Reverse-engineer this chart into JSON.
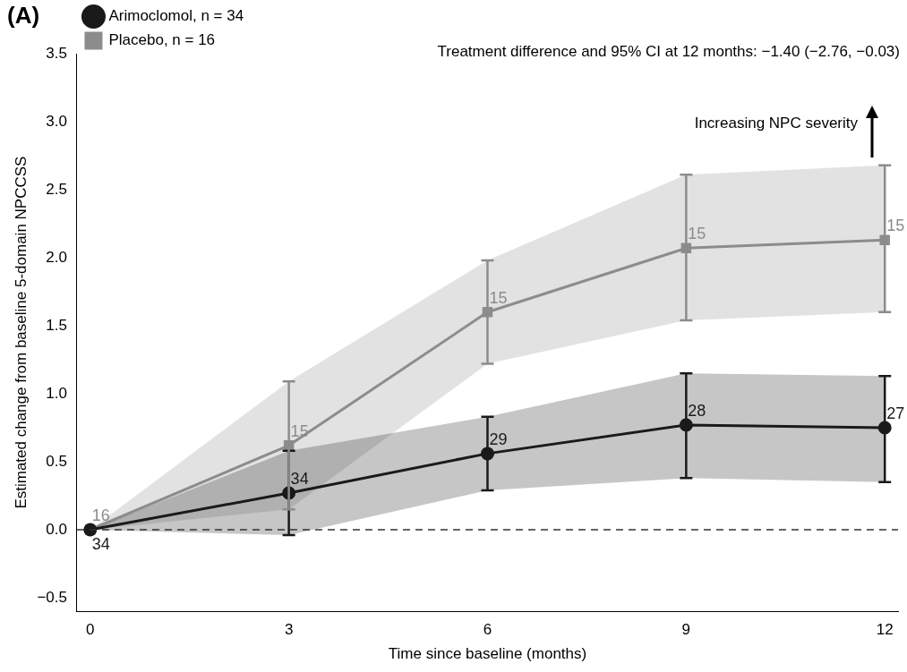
{
  "chart_data": {
    "type": "line",
    "xlabel": "Time since baseline (months)",
    "ylabel": "Estimated change from baseline 5-domain NPCCSS",
    "x": [
      0,
      3,
      6,
      9,
      12
    ],
    "series": [
      {
        "name": "Arimoclomol, n = 34",
        "color": "#1a1a1a",
        "values": [
          0,
          0.27,
          0.56,
          0.77,
          0.75
        ],
        "errors": [
          null,
          [
            -0.04,
            0.58
          ],
          [
            0.29,
            0.83
          ],
          [
            0.38,
            1.15
          ],
          [
            0.35,
            1.13
          ]
        ],
        "lower": [
          0,
          -0.04,
          0.29,
          0.38,
          0.35
        ],
        "upper": [
          0,
          0.58,
          0.83,
          1.15,
          1.13
        ],
        "marker": "circle"
      },
      {
        "name": "Placebo, n = 16",
        "color": "#8c8c8c",
        "values": [
          0,
          0.62,
          1.6,
          2.07,
          2.13
        ],
        "errors": [
          null,
          [
            0.15,
            1.09
          ],
          [
            1.22,
            1.98
          ],
          [
            1.54,
            2.61
          ],
          [
            1.6,
            2.68
          ]
        ],
        "lower": [
          0,
          0.15,
          1.22,
          1.54,
          1.6
        ],
        "upper": [
          0,
          1.09,
          1.98,
          2.61,
          2.68
        ],
        "marker": "square"
      }
    ],
    "xlim": [
      -0.2,
      12.2
    ],
    "xticks": [
      0,
      3,
      6,
      9,
      12
    ],
    "ylim": [
      -0.6,
      3.5
    ],
    "yticks": [
      {
        "value": -0.5,
        "label": "−0.5"
      },
      {
        "value": 0,
        "label": "0.0"
      },
      {
        "value": 0.5,
        "label": "0.5"
      },
      {
        "value": 1,
        "label": "1.0"
      },
      {
        "value": 1.5,
        "label": "1.5"
      },
      {
        "value": 2,
        "label": "2.0"
      },
      {
        "value": 2.5,
        "label": "2.5"
      },
      {
        "value": 3,
        "label": "3.0"
      },
      {
        "value": 3.5,
        "label": "3.5"
      }
    ],
    "ref_lines": [
      {
        "axis": "y",
        "value": 0,
        "line_style": "dashed",
        "color": "#333333"
      }
    ],
    "annotations": [
      "(A)",
      "Treatment difference and 95% CI at 12 months: −1.40 (−2.76, −0.03)",
      "Increasing NPC severity",
      {
        "text": "16",
        "x": 0,
        "y": 0
      },
      {
        "text": "34",
        "x": 0,
        "y": 0
      },
      {
        "text": "34",
        "x": 3,
        "y": 0.27
      },
      {
        "text": "29",
        "x": 6,
        "y": 0.56
      },
      {
        "text": "28",
        "x": 9,
        "y": 0.77
      },
      {
        "text": "27",
        "x": 12,
        "y": 0.75
      },
      {
        "text": "15",
        "x": 3,
        "y": 0.62
      },
      {
        "text": "15",
        "x": 6,
        "y": 1.6
      },
      {
        "text": "15",
        "x": 9,
        "y": 2.07
      },
      {
        "text": "15",
        "x": 12,
        "y": 2.13
      }
    ],
    "grid": false,
    "legend": "top left"
  }
}
